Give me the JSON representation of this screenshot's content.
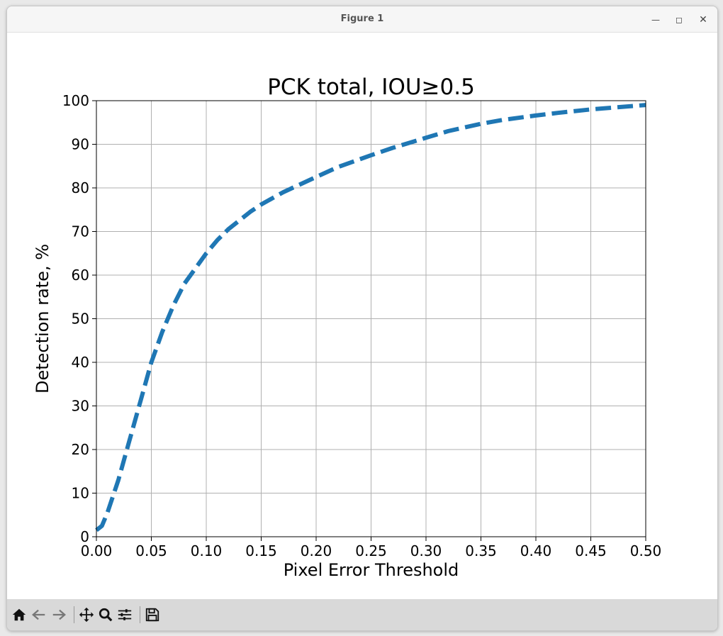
{
  "window": {
    "title": "Figure 1",
    "minimize_icon": "minimize-icon",
    "maximize_icon": "maximize-icon",
    "close_icon": "close-icon"
  },
  "toolbar": {
    "items": [
      "home-icon",
      "back-arrow-icon",
      "forward-arrow-icon",
      "pan-icon",
      "zoom-icon",
      "configure-subplots-icon",
      "save-icon"
    ]
  },
  "chart_data": {
    "type": "line",
    "title": "PCK total, IOU≥0.5",
    "xlabel": "Pixel Error Threshold",
    "ylabel": "Detection rate, %",
    "xlim": [
      0,
      0.5
    ],
    "ylim": [
      0,
      100
    ],
    "xticks": [
      "0.00",
      "0.05",
      "0.10",
      "0.15",
      "0.20",
      "0.25",
      "0.30",
      "0.35",
      "0.40",
      "0.45",
      "0.50"
    ],
    "yticks": [
      "0",
      "10",
      "20",
      "30",
      "40",
      "50",
      "60",
      "70",
      "80",
      "90",
      "100"
    ],
    "grid": true,
    "line_color": "#1f77b4",
    "line_style": "dashed",
    "x": [
      0.0,
      0.005,
      0.01,
      0.02,
      0.03,
      0.04,
      0.05,
      0.06,
      0.07,
      0.08,
      0.09,
      0.1,
      0.11,
      0.12,
      0.13,
      0.14,
      0.15,
      0.17,
      0.2,
      0.22,
      0.25,
      0.27,
      0.3,
      0.32,
      0.35,
      0.37,
      0.4,
      0.42,
      0.45,
      0.47,
      0.5
    ],
    "y": [
      1.5,
      2.5,
      5.5,
      13,
      22,
      31,
      40,
      47,
      53,
      58,
      61.5,
      65,
      68,
      70.5,
      72.5,
      74.5,
      76.2,
      79,
      82.5,
      84.8,
      87.5,
      89.2,
      91.5,
      93,
      94.7,
      95.6,
      96.6,
      97.2,
      98,
      98.4,
      99
    ]
  }
}
